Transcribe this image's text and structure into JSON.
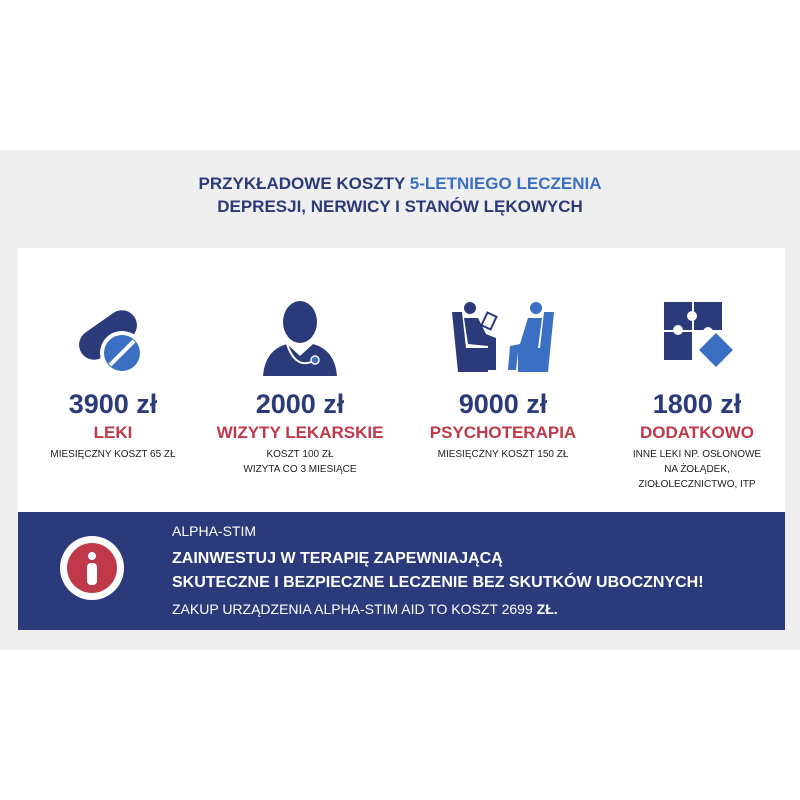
{
  "header": {
    "title_part1": "PRZYKŁADOWE KOSZTY ",
    "title_highlight": "5-LETNIEGO LECZENIA",
    "title_line2": "DEPRESJI, NERWICY I STANÓW LĘKOWYCH"
  },
  "colors": {
    "navy": "#2b3a7a",
    "accent_blue": "#3a6fc4",
    "red": "#c0394b",
    "band": "#efefef"
  },
  "costs": [
    {
      "icon": "pills-icon",
      "amount": "3900 zł",
      "label": "LEKI",
      "note": "MIESIĘCZNY KOSZT 65 ZŁ"
    },
    {
      "icon": "doctor-icon",
      "amount": "2000 zł",
      "label": "WIZYTY LEKARSKIE",
      "note": "KOSZT 100 ZŁ\nWIZYTA CO 3 MIESIĄCE"
    },
    {
      "icon": "therapy-session-icon",
      "amount": "9000 zł",
      "label": "PSYCHOTERAPIA",
      "note": "MIESIĘCZNY KOSZT 150 ZŁ"
    },
    {
      "icon": "puzzle-icon",
      "amount": "1800 zł",
      "label": "DODATKOWO",
      "note": "INNE LEKI NP. OSŁONOWE\nNA ŻOŁĄDEK,\nZIOŁOLECZNICTWO, ITP"
    }
  ],
  "banner": {
    "icon": "info-icon",
    "brand": "ALPHA-STIM",
    "line1": "ZAINWESTUJ W TERAPIĘ ZAPEWNIAJĄCĄ",
    "line2": "SKUTECZNE I BEZPIECZNE LECZENIE BEZ SKUTKÓW UBOCZNYCH!",
    "line3": "ZAKUP URZĄDZENIA ALPHA-STIM AID TO KOSZT 2699 ",
    "line3_bold": "ZŁ."
  }
}
